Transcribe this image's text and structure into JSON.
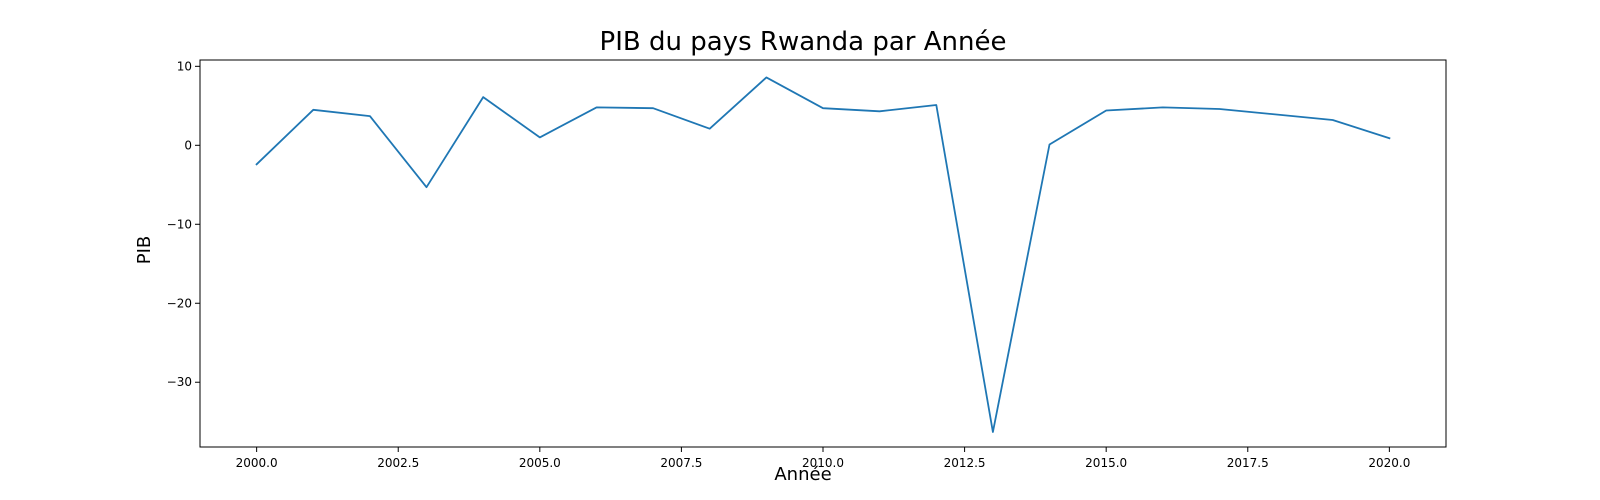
{
  "chart_data": {
    "type": "line",
    "title": "PIB du pays Rwanda par Année",
    "xlabel": "Année",
    "ylabel": "PIB",
    "xlim": [
      1999.0,
      2021.0
    ],
    "ylim": [
      -38.2,
      10.8
    ],
    "x_ticks": [
      2000.0,
      2002.5,
      2005.0,
      2007.5,
      2010.0,
      2012.5,
      2015.0,
      2017.5,
      2020.0
    ],
    "x_tick_labels": [
      "2000.0",
      "2002.5",
      "2005.0",
      "2007.5",
      "2010.0",
      "2012.5",
      "2015.0",
      "2017.5",
      "2020.0"
    ],
    "y_ticks": [
      10,
      0,
      -10,
      -20,
      -30
    ],
    "y_tick_labels": [
      "10",
      "0",
      "−10",
      "−20",
      "−30"
    ],
    "grid": false,
    "line_color": "#1f77b4",
    "series": [
      {
        "x": [
          2000,
          2001,
          2002,
          2003,
          2004,
          2005,
          2006,
          2007,
          2008,
          2009,
          2010,
          2011,
          2012,
          2013,
          2014,
          2015,
          2016,
          2017,
          2019,
          2020
        ],
        "values": [
          -2.4,
          4.5,
          3.7,
          -5.3,
          6.1,
          1.0,
          4.8,
          4.7,
          2.1,
          8.6,
          4.7,
          4.3,
          5.1,
          -36.3,
          0.1,
          4.4,
          4.8,
          4.6,
          3.2,
          0.9
        ]
      }
    ]
  }
}
